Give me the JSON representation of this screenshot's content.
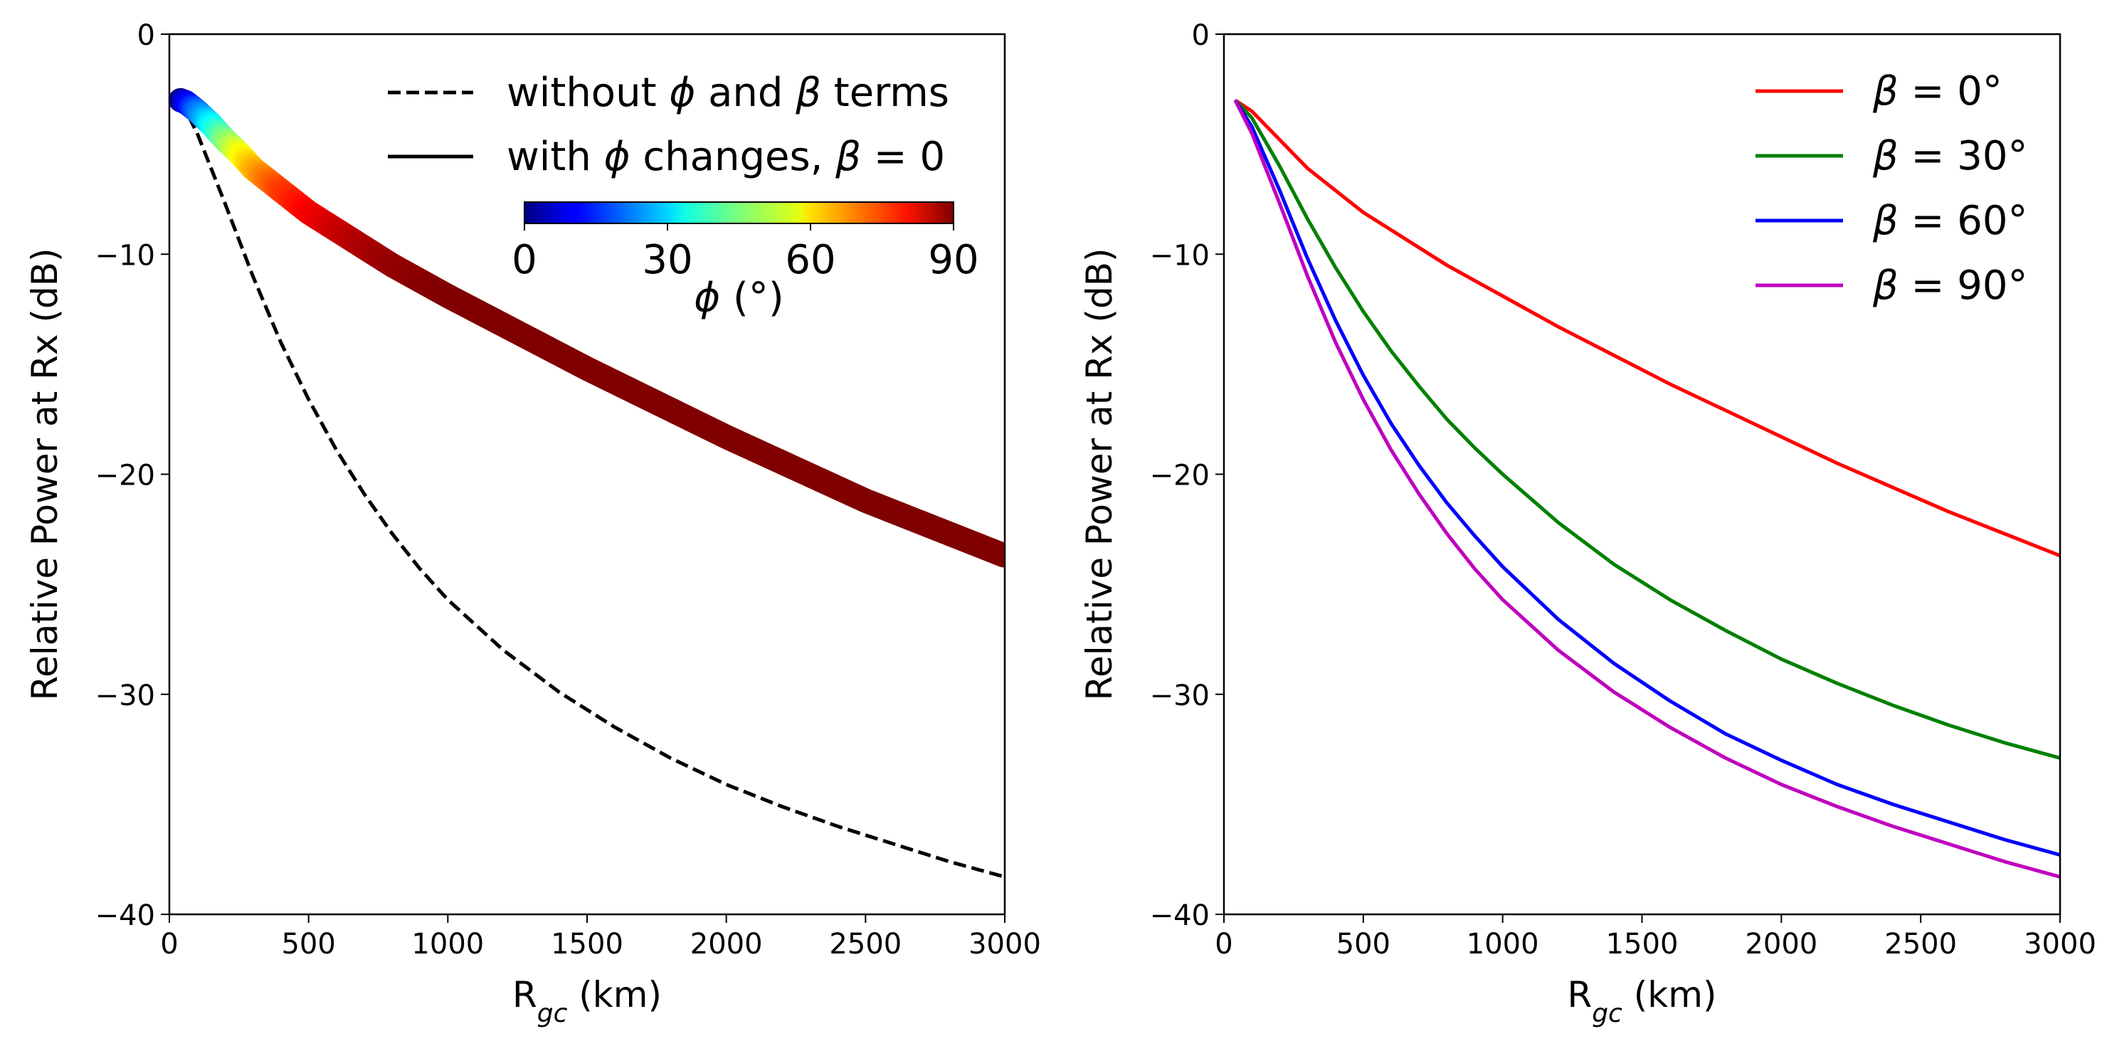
{
  "chart_data": [
    {
      "type": "line",
      "xlabel": "R",
      "xlabel_sub": "gc",
      "xlabel_unit": " (km)",
      "ylabel": "Relative Power at Rx (dB)",
      "xlim": [
        0,
        3000
      ],
      "ylim": [
        -40,
        0
      ],
      "xticks": [
        "0",
        "500",
        "1000",
        "1500",
        "2000",
        "2500",
        "3000"
      ],
      "yticks": [
        "0",
        "−10",
        "−20",
        "−30",
        "−40"
      ],
      "grid": false,
      "legend_position": "top-right",
      "legend": [
        {
          "pre": "without ",
          "sym1": "ϕ",
          "mid": " and ",
          "sym2": "β",
          "post": " terms",
          "style": "dashed",
          "color": "#000000"
        },
        {
          "pre": "with ",
          "sym1": "ϕ",
          "mid": " changes, ",
          "sym2": "β",
          "post": " = 0",
          "style": "solid",
          "color": "#000000"
        }
      ],
      "colorbar": {
        "colormap": "jet",
        "range": [
          0,
          90
        ],
        "ticks": [
          "0",
          "30",
          "60",
          "90"
        ],
        "label_symbol": "ϕ",
        "label_unit": " (°)"
      },
      "series": [
        {
          "style": "dashed",
          "color": "#000000",
          "x": [
            40,
            100,
            200,
            300,
            400,
            500,
            600,
            700,
            800,
            900,
            1000,
            1200,
            1400,
            1600,
            1800,
            2000,
            2200,
            2400,
            2600,
            2800,
            3000
          ],
          "y": [
            -3.0,
            -4.5,
            -7.7,
            -11.0,
            -14.0,
            -16.6,
            -18.9,
            -20.9,
            -22.7,
            -24.3,
            -25.7,
            -28.0,
            -29.9,
            -31.5,
            -32.9,
            -34.1,
            -35.1,
            -36.0,
            -36.8,
            -37.6,
            -38.3
          ]
        },
        {
          "style": "solid",
          "color": "#000000",
          "x": [
            40,
            100,
            200,
            300,
            400,
            500,
            600,
            700,
            800,
            900,
            1000,
            1200,
            1400,
            1600,
            1800,
            2000,
            2200,
            2400,
            2600,
            2800,
            3000
          ],
          "y": [
            -3.0,
            -3.5,
            -4.8,
            -6.1,
            -7.1,
            -8.1,
            -8.9,
            -9.7,
            -10.5,
            -11.2,
            -11.9,
            -13.3,
            -14.6,
            -15.9,
            -17.1,
            -18.3,
            -19.5,
            -20.6,
            -21.7,
            -22.7,
            -23.7
          ]
        },
        {
          "style": "colored-band",
          "color_by": "phi",
          "x": [
            40,
            60,
            100,
            150,
            200,
            250,
            300,
            350,
            400,
            500,
            600,
            700,
            800,
            1000,
            1500,
            2000,
            2500,
            3000
          ],
          "y": [
            -3.0,
            -3.1,
            -3.5,
            -4.1,
            -4.8,
            -5.4,
            -6.1,
            -6.6,
            -7.1,
            -8.1,
            -8.9,
            -9.7,
            -10.5,
            -11.9,
            -15.2,
            -18.3,
            -21.2,
            -23.7
          ],
          "phi": [
            0,
            8,
            20,
            32,
            44,
            54,
            62,
            68,
            73,
            79,
            83,
            86,
            88,
            90,
            90,
            90,
            90,
            90
          ]
        }
      ]
    },
    {
      "type": "line",
      "xlabel": "R",
      "xlabel_sub": "gc",
      "xlabel_unit": " (km)",
      "ylabel": "Relative Power at Rx (dB)",
      "xlim": [
        0,
        3000
      ],
      "ylim": [
        -40,
        0
      ],
      "xticks": [
        "0",
        "500",
        "1000",
        "1500",
        "2000",
        "2500",
        "3000"
      ],
      "yticks": [
        "0",
        "−10",
        "−20",
        "−30",
        "−40"
      ],
      "grid": false,
      "legend_position": "top-right",
      "series": [
        {
          "name_symbol": "β",
          "name_value": " = 0°",
          "color": "#ff0000",
          "x": [
            40,
            100,
            200,
            300,
            400,
            500,
            600,
            700,
            800,
            900,
            1000,
            1200,
            1400,
            1600,
            1800,
            2000,
            2200,
            2400,
            2600,
            2800,
            3000
          ],
          "y": [
            -3.0,
            -3.5,
            -4.8,
            -6.1,
            -7.1,
            -8.1,
            -8.9,
            -9.7,
            -10.5,
            -11.2,
            -11.9,
            -13.3,
            -14.6,
            -15.9,
            -17.1,
            -18.3,
            -19.5,
            -20.6,
            -21.7,
            -22.7,
            -23.7
          ]
        },
        {
          "name_symbol": "β",
          "name_value": " = 30°",
          "color": "#008000",
          "x": [
            40,
            100,
            200,
            300,
            400,
            500,
            600,
            700,
            800,
            900,
            1000,
            1200,
            1400,
            1600,
            1800,
            2000,
            2200,
            2400,
            2600,
            2800,
            3000
          ],
          "y": [
            -3.0,
            -3.8,
            -6.0,
            -8.4,
            -10.6,
            -12.6,
            -14.4,
            -16.0,
            -17.5,
            -18.8,
            -20.0,
            -22.2,
            -24.1,
            -25.7,
            -27.1,
            -28.4,
            -29.5,
            -30.5,
            -31.4,
            -32.2,
            -32.9
          ]
        },
        {
          "name_symbol": "β",
          "name_value": " = 60°",
          "color": "#0000ff",
          "x": [
            40,
            100,
            200,
            300,
            400,
            500,
            600,
            700,
            800,
            900,
            1000,
            1200,
            1400,
            1600,
            1800,
            2000,
            2200,
            2400,
            2600,
            2800,
            3000
          ],
          "y": [
            -3.0,
            -4.2,
            -7.1,
            -10.2,
            -13.0,
            -15.5,
            -17.7,
            -19.6,
            -21.3,
            -22.8,
            -24.2,
            -26.6,
            -28.6,
            -30.3,
            -31.8,
            -33.0,
            -34.1,
            -35.0,
            -35.8,
            -36.6,
            -37.3
          ]
        },
        {
          "name_symbol": "β",
          "name_value": " = 90°",
          "color": "#bf00bf",
          "x": [
            40,
            100,
            200,
            300,
            400,
            500,
            600,
            700,
            800,
            900,
            1000,
            1200,
            1400,
            1600,
            1800,
            2000,
            2200,
            2400,
            2600,
            2800,
            3000
          ],
          "y": [
            -3.0,
            -4.5,
            -7.7,
            -11.0,
            -14.0,
            -16.6,
            -18.9,
            -20.9,
            -22.7,
            -24.3,
            -25.7,
            -28.0,
            -29.9,
            -31.5,
            -32.9,
            -34.1,
            -35.1,
            -36.0,
            -36.8,
            -37.6,
            -38.3
          ]
        }
      ]
    }
  ]
}
